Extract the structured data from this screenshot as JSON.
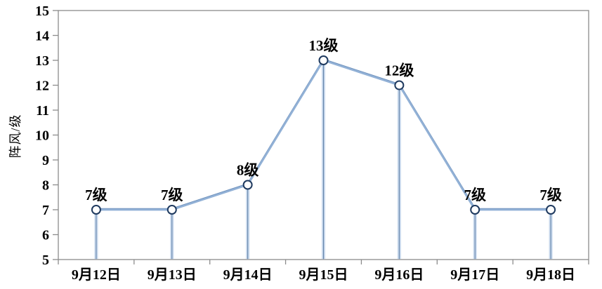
{
  "chart_data": {
    "type": "line",
    "title": "",
    "ylabel": "阵风/级",
    "xlabel": "",
    "categories": [
      "9月12日",
      "9月13日",
      "9月14日",
      "9月15日",
      "9月16日",
      "9月17日",
      "9月18日"
    ],
    "values": [
      7,
      7,
      8,
      13,
      12,
      7,
      7
    ],
    "point_labels": [
      "7级",
      "7级",
      "8级",
      "13级",
      "12级",
      "7级",
      "7级"
    ],
    "ylim": [
      5,
      15
    ],
    "ytick_step": 1,
    "yticks": [
      5,
      6,
      7,
      8,
      9,
      10,
      11,
      12,
      13,
      14,
      15
    ],
    "grid": false,
    "legend_position": "none",
    "marker": "open-circle",
    "drop_lines": true,
    "colors": {
      "line": "#92B1D6",
      "line_shade": "#6E91BC",
      "drop_line_outer": "#C8D8EC",
      "drop_line_inner": "#5E7FA6",
      "marker_fill": "#FFFFFF",
      "marker_stroke": "#1F3A5F",
      "axis": "#8C8C8C",
      "text": "#000000"
    }
  }
}
